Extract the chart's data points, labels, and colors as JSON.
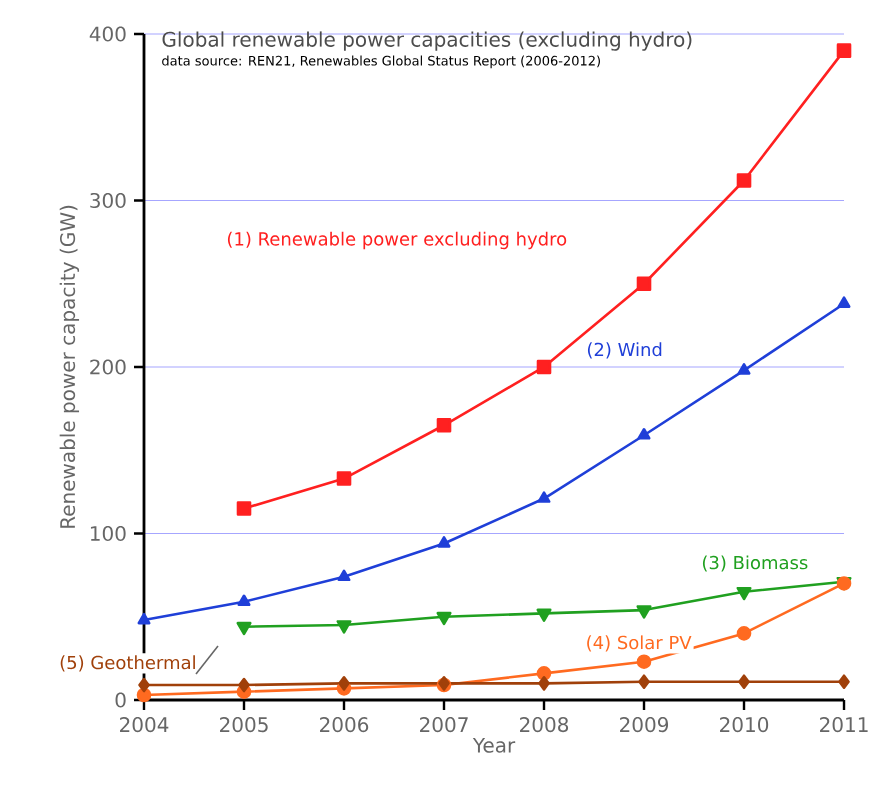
{
  "chart_data": {
    "type": "line",
    "title": "Global renewable power capacities (excluding hydro)",
    "subtitle": "data source: REN21, Renewables Global Status Report (2006-2012)",
    "xlabel": "Year",
    "ylabel": "Renewable power capacity (GW)",
    "x": [
      2004,
      2005,
      2006,
      2007,
      2008,
      2009,
      2010,
      2011
    ],
    "xlim": [
      2004,
      2011
    ],
    "xticks": [
      2004,
      2005,
      2006,
      2007,
      2008,
      2009,
      2010,
      2011
    ],
    "ylim": [
      0,
      400
    ],
    "yticks": [
      0,
      100,
      200,
      300,
      400
    ],
    "grid": "y",
    "legend": false,
    "series": [
      {
        "name": "(1) Renewable power excluding hydro",
        "color": "#ff2020",
        "marker": "square",
        "values": [
          null,
          115,
          133,
          165,
          200,
          250,
          312,
          390
        ]
      },
      {
        "name": "(2) Wind",
        "color": "#1f3fd8",
        "marker": "triangle",
        "values": [
          48,
          59,
          74,
          94,
          121,
          159,
          198,
          238
        ]
      },
      {
        "name": "(3) Biomass",
        "color": "#20a020",
        "marker": "triangle-down",
        "values": [
          null,
          44,
          45,
          50,
          52,
          54,
          65,
          71
        ]
      },
      {
        "name": "(4) Solar PV",
        "color": "#ff6a20",
        "marker": "circle",
        "values": [
          3,
          5,
          7,
          9,
          16,
          23,
          40,
          70
        ]
      },
      {
        "name": "(5) Geothermal",
        "color": "#a0400a",
        "marker": "diamond",
        "values": [
          9,
          9,
          10,
          10,
          10,
          11,
          11,
          11
        ]
      }
    ]
  }
}
